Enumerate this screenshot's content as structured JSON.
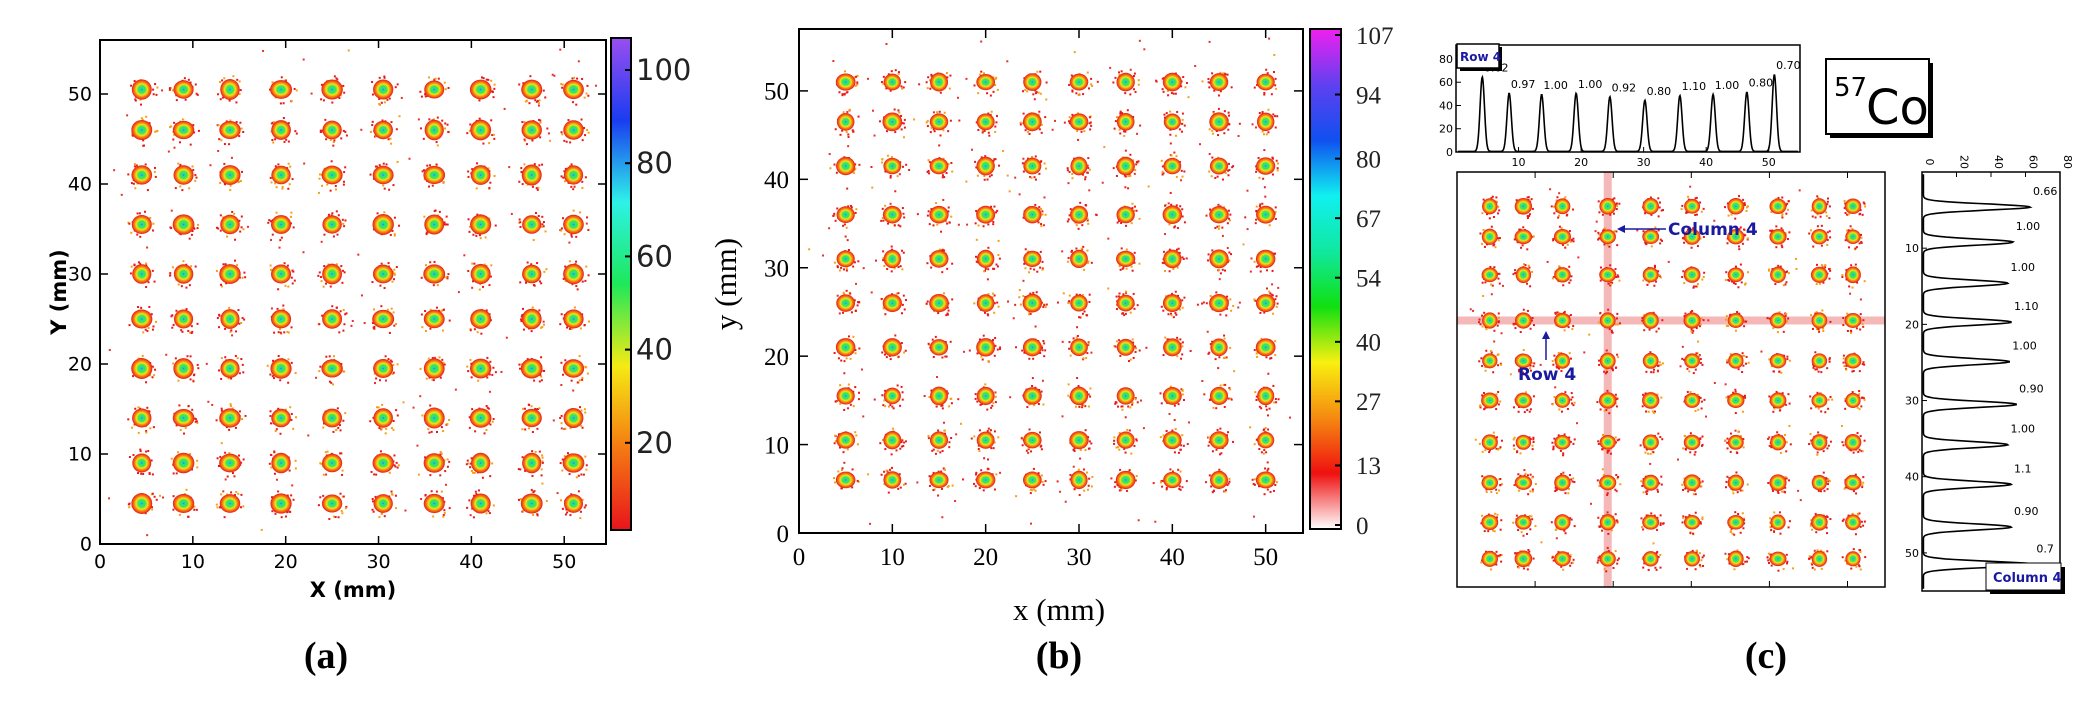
{
  "captions": {
    "a": "(a)",
    "b": "(b)",
    "c": "(c)"
  },
  "isotope": {
    "mass": "57",
    "symbol": "Co"
  },
  "chart_data": [
    {
      "panel": "a",
      "type": "heatmap",
      "xlabel": "X (mm)",
      "ylabel": "Y (mm)",
      "xlim": [
        0,
        54.5
      ],
      "ylim": [
        0,
        56
      ],
      "xticks": [
        0,
        10,
        20,
        30,
        40,
        50
      ],
      "yticks": [
        0,
        10,
        20,
        30,
        40,
        50
      ],
      "spot_x": [
        4.5,
        9,
        14,
        19.5,
        25,
        30.5,
        36,
        41,
        46.5,
        51
      ],
      "spot_y": [
        4.5,
        9,
        14,
        19.5,
        25,
        30,
        35.5,
        41,
        46,
        50.5
      ],
      "colorbar": {
        "range": [
          0,
          107
        ],
        "ticks": [
          20,
          40,
          60,
          80,
          100
        ],
        "colors": [
          "#e8141c",
          "#f57a12",
          "#f5ea14",
          "#1ee85a",
          "#2ef2e8",
          "#1a3cf0",
          "#9a4ef0"
        ]
      },
      "grid": false
    },
    {
      "panel": "b",
      "type": "heatmap",
      "xlabel": "x (mm)",
      "ylabel": "y (mm)",
      "xlim": [
        0,
        54
      ],
      "ylim": [
        0,
        57
      ],
      "xticks": [
        0,
        10,
        20,
        30,
        40,
        50
      ],
      "yticks": [
        0,
        10,
        20,
        30,
        40,
        50
      ],
      "spot_x": [
        5,
        10,
        15,
        20,
        25,
        30,
        35,
        40,
        45,
        50
      ],
      "spot_y": [
        6,
        10.5,
        15.5,
        21,
        26,
        31,
        36,
        41.5,
        46.5,
        51
      ],
      "colorbar": {
        "range": [
          0,
          107
        ],
        "ticks": [
          0,
          13,
          27,
          40,
          54,
          67,
          80,
          94,
          107
        ],
        "colors": [
          "#ffffff",
          "#f01010",
          "#f58a10",
          "#f8f010",
          "#10e010",
          "#10e8a0",
          "#10f0f0",
          "#1050f0",
          "#6040f0",
          "#f020f0"
        ]
      },
      "grid": false
    },
    {
      "panel": "c-image",
      "type": "heatmap",
      "xlim": [
        0,
        54.8
      ],
      "ylim": [
        0,
        54.5
      ],
      "y_inverted": true,
      "xticks": [
        10,
        20,
        30,
        40,
        50
      ],
      "spot_x": [
        4.2,
        8.5,
        13.5,
        19.3,
        24.8,
        30.1,
        35.7,
        41.1,
        46.4,
        50.7
      ],
      "spot_y": [
        4.5,
        8.5,
        13.5,
        19.5,
        24.8,
        30,
        35.5,
        40.8,
        46,
        50.8
      ],
      "highlight": {
        "column_x": 19.3,
        "row_y": 19.5,
        "color": "#f4b8b8"
      },
      "annotations": [
        {
          "text": "Column 4",
          "color": "#1a1aa0"
        },
        {
          "text": "Row 4",
          "color": "#1a1aa0"
        }
      ]
    },
    {
      "panel": "c-row-profile",
      "type": "line",
      "legend": "Row 4",
      "xlim": [
        0,
        55
      ],
      "ylim": [
        0,
        92
      ],
      "xticks": [
        10,
        20,
        30,
        40,
        50
      ],
      "yticks": [
        0,
        20,
        40,
        60,
        80
      ],
      "peaks_x": [
        4.2,
        8.5,
        13.7,
        19.2,
        24.6,
        30.2,
        35.8,
        41.1,
        46.5,
        50.9
      ],
      "peaks_height": [
        64,
        50,
        49,
        50,
        47,
        44,
        48,
        49,
        51,
        66
      ],
      "peak_labels": [
        "0.62",
        "0.97",
        "1.00",
        "1.00",
        "0.92",
        "0.80",
        "1.10",
        "1.00",
        "0.80",
        "0.70"
      ]
    },
    {
      "panel": "c-column-profile",
      "type": "line",
      "legend": "Column 4",
      "xlim": [
        0,
        80
      ],
      "ylim": [
        0,
        55
      ],
      "xticks": [
        0,
        20,
        40,
        60,
        80
      ],
      "yticks": [
        10,
        20,
        30,
        40,
        50
      ],
      "peaks_y": [
        4.6,
        9.2,
        14.6,
        19.7,
        24.9,
        30.5,
        35.8,
        41,
        46.6,
        51.5
      ],
      "peaks_height": [
        62,
        52,
        49,
        51,
        50,
        54,
        49,
        51,
        51,
        64
      ],
      "peak_labels": [
        "0.66",
        "1.00",
        "1.00",
        "1.10",
        "1.00",
        "0.90",
        "1.00",
        "1.1",
        "0.90",
        "0.7"
      ]
    }
  ]
}
